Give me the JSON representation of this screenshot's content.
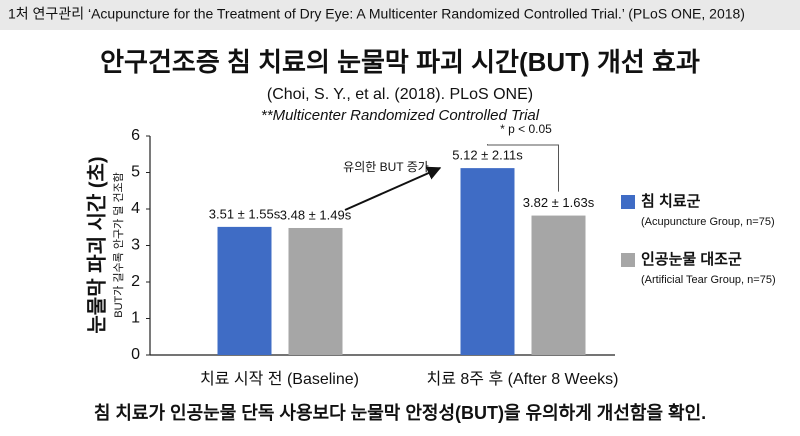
{
  "chart_data": {
    "type": "bar",
    "header": "1처 연구관리 ‘Acupuncture for the Treatment of Dry Eye: A Multicenter Randomized Controlled Trial.’ (PLoS ONE, 2018)",
    "title": "안구건조증 침 치료의 눈물막 파괴 시간(BUT) 개선 효과",
    "citation": "(Choi, S. Y., et al. (2018). PLoS ONE)",
    "subtitle": "**Multicenter Randomized Controlled Trial",
    "ylabel": "눈물막 파괴 시간 (초)",
    "ylabel_note": "BUT가 길수록 안구가 덜 건조함",
    "categories": [
      "치료 시작 전 (Baseline)",
      "치료 8주 후 (After 8 Weeks)"
    ],
    "series": [
      {
        "name": "침 치료군",
        "sublabel": "(Acupuncture Group, n=75)",
        "color": "#3f6cc5",
        "values": [
          3.51,
          5.12
        ],
        "value_labels": [
          "3.51 ± 1.55s",
          "5.12 ± 2.11s"
        ]
      },
      {
        "name": "인공눈물 대조군",
        "sublabel": "(Artificial Tear Group, n=75)",
        "color": "#a6a6a6",
        "values": [
          3.48,
          3.82
        ],
        "value_labels": [
          "3.48 ± 1.49s",
          "3.82 ± 1.63s"
        ]
      }
    ],
    "ylim": [
      0,
      6
    ],
    "yticks": [
      0,
      1,
      2,
      3,
      4,
      5,
      6
    ],
    "grid": false,
    "annotations": [
      "유의한 BUT 증가",
      "* p < 0.05"
    ],
    "footer": "침 치료가 인공눈물 단독 사용보다 눈물막 안정성(BUT)을 유의하게 개선함을 확인."
  }
}
